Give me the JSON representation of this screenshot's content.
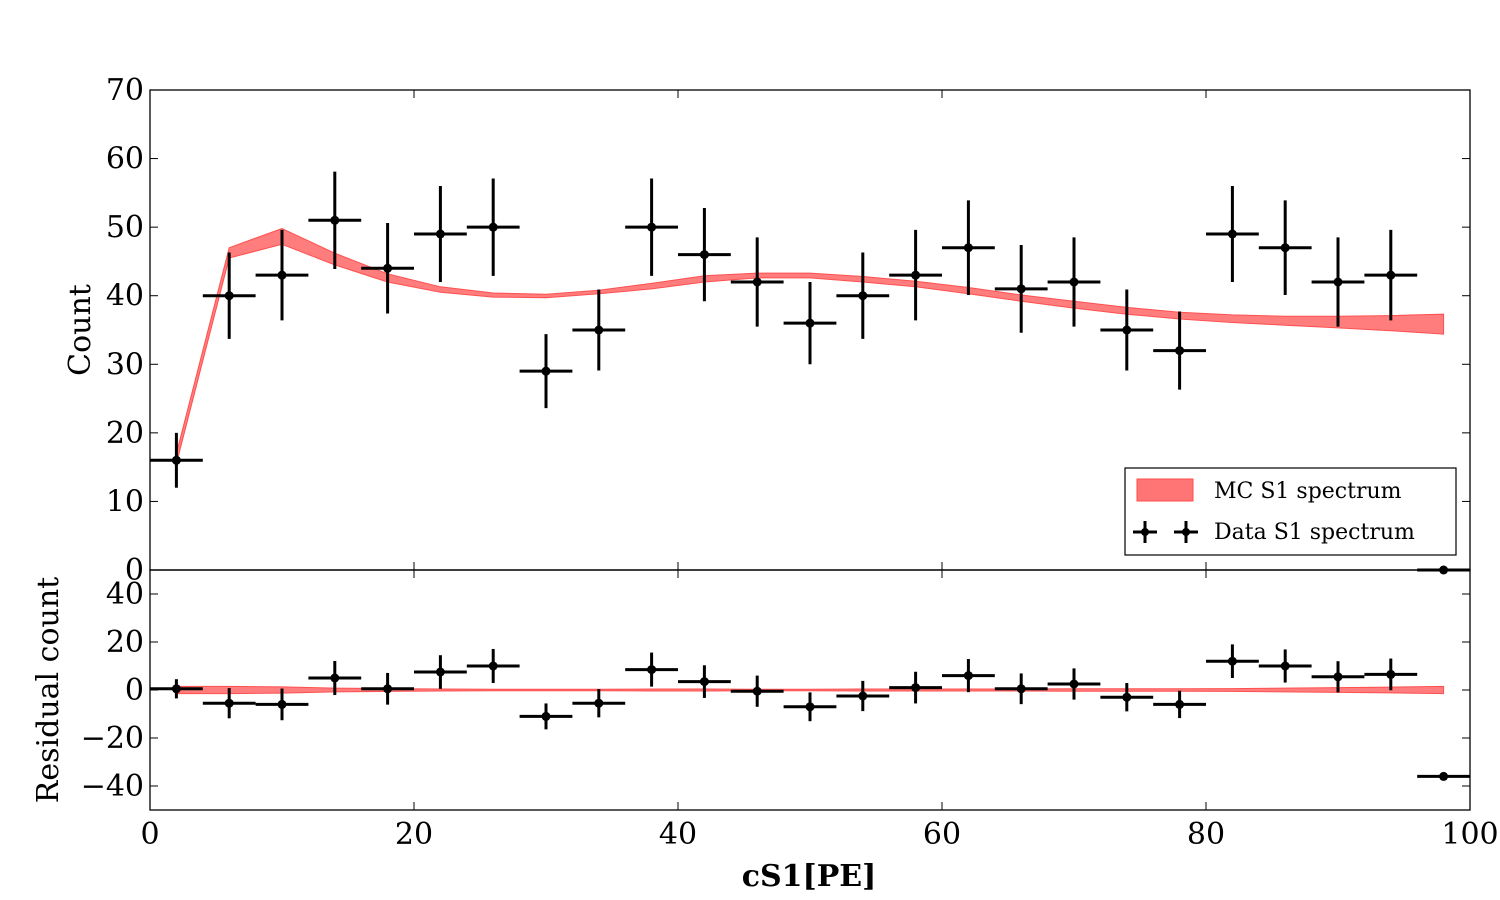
{
  "chart_data": [
    {
      "type": "line",
      "panel": "main",
      "xlabel": "",
      "ylabel": "Count",
      "xlim": [
        0,
        100
      ],
      "ylim": [
        0,
        70
      ],
      "y_ticks": [
        0,
        10,
        20,
        30,
        40,
        50,
        60,
        70
      ],
      "x_ticks": [
        0,
        20,
        40,
        60,
        80,
        100
      ],
      "legend": {
        "placement": "lower-right",
        "entries": [
          "MC S1 spectrum",
          "Data S1 spectrum"
        ]
      },
      "series": [
        {
          "name": "MC S1 spectrum",
          "kind": "band",
          "color": "#ff6666",
          "x": [
            2,
            6,
            10,
            14,
            18,
            22,
            26,
            30,
            34,
            38,
            42,
            46,
            50,
            54,
            58,
            62,
            66,
            70,
            74,
            78,
            82,
            86,
            90,
            94,
            98
          ],
          "lower": [
            15.5,
            45.5,
            47.5,
            44.5,
            42.0,
            40.5,
            39.8,
            39.7,
            40.3,
            41.0,
            42.0,
            42.6,
            42.6,
            42.0,
            41.3,
            40.3,
            39.2,
            38.2,
            37.3,
            36.6,
            36.1,
            35.7,
            35.3,
            34.9,
            34.4
          ],
          "upper": [
            17.0,
            47.0,
            49.8,
            46.2,
            43.2,
            41.3,
            40.4,
            40.2,
            40.8,
            41.8,
            42.9,
            43.3,
            43.3,
            42.8,
            42.1,
            41.2,
            40.1,
            39.2,
            38.3,
            37.6,
            37.2,
            37.0,
            37.0,
            37.1,
            37.3
          ]
        },
        {
          "name": "Data S1 spectrum",
          "kind": "errorbar",
          "color": "#000000",
          "x": [
            2,
            6,
            10,
            14,
            18,
            22,
            26,
            30,
            34,
            38,
            42,
            46,
            50,
            54,
            58,
            62,
            66,
            70,
            74,
            78,
            82,
            86,
            90,
            94,
            98
          ],
          "y": [
            16,
            40,
            43,
            51,
            44,
            49,
            50,
            29,
            35,
            50,
            46,
            42,
            36,
            40,
            43,
            47,
            41,
            42,
            35,
            32,
            49,
            47,
            42,
            43,
            0
          ],
          "xerr": 2,
          "yerr": [
            4,
            6.3,
            6.6,
            7.1,
            6.6,
            7,
            7.1,
            5.4,
            5.9,
            7.1,
            6.8,
            6.5,
            6,
            6.3,
            6.6,
            6.9,
            6.4,
            6.5,
            5.9,
            5.7,
            7,
            6.9,
            6.5,
            6.6,
            0
          ]
        }
      ]
    },
    {
      "type": "line",
      "panel": "residual",
      "xlabel": "cS1[PE]",
      "ylabel": "Residual count",
      "xlim": [
        0,
        100
      ],
      "ylim": [
        -50,
        50
      ],
      "y_ticks": [
        -40,
        -20,
        0,
        20,
        40
      ],
      "y_tick_labels": [
        "−40",
        "−20",
        "0",
        "20",
        "40"
      ],
      "x_ticks": [
        0,
        20,
        40,
        60,
        80,
        100
      ],
      "series": [
        {
          "kind": "band",
          "color": "#ff6666",
          "x": [
            2,
            6,
            10,
            14,
            18,
            22,
            26,
            30,
            34,
            38,
            42,
            46,
            50,
            54,
            58,
            62,
            66,
            70,
            74,
            78,
            82,
            86,
            90,
            94,
            98
          ],
          "lower": [
            -1.5,
            -1.5,
            -1.3,
            -0.8,
            -0.6,
            -0.4,
            -0.3,
            -0.3,
            -0.3,
            -0.4,
            -0.4,
            -0.3,
            -0.3,
            -0.4,
            -0.4,
            -0.4,
            -0.4,
            -0.5,
            -0.5,
            -0.5,
            -0.6,
            -0.8,
            -1.0,
            -1.2,
            -1.5
          ],
          "upper": [
            1.5,
            1.5,
            1.3,
            0.8,
            0.6,
            0.4,
            0.3,
            0.3,
            0.3,
            0.4,
            0.4,
            0.3,
            0.3,
            0.4,
            0.4,
            0.4,
            0.4,
            0.5,
            0.5,
            0.5,
            0.6,
            0.8,
            1.0,
            1.2,
            1.5
          ]
        },
        {
          "kind": "errorbar",
          "color": "#000000",
          "x": [
            2,
            6,
            10,
            14,
            18,
            22,
            26,
            30,
            34,
            38,
            42,
            46,
            50,
            54,
            58,
            62,
            66,
            70,
            74,
            78,
            82,
            86,
            90,
            94,
            98
          ],
          "y": [
            0.5,
            -5.5,
            -6,
            5,
            0.5,
            7.5,
            10,
            -11,
            -5.5,
            8.5,
            3.5,
            -0.5,
            -7,
            -2.5,
            1,
            6,
            0.5,
            2.5,
            -3,
            -6,
            12,
            10,
            5.5,
            6.5,
            -36
          ],
          "xerr": 2,
          "yerr": [
            4,
            6.3,
            6.6,
            7.1,
            6.6,
            7,
            7.1,
            5.4,
            5.9,
            7.1,
            6.8,
            6.5,
            6,
            6.3,
            6.6,
            6.9,
            6.4,
            6.5,
            5.9,
            5.7,
            7,
            6.9,
            6.5,
            6.6,
            0
          ]
        }
      ]
    }
  ]
}
